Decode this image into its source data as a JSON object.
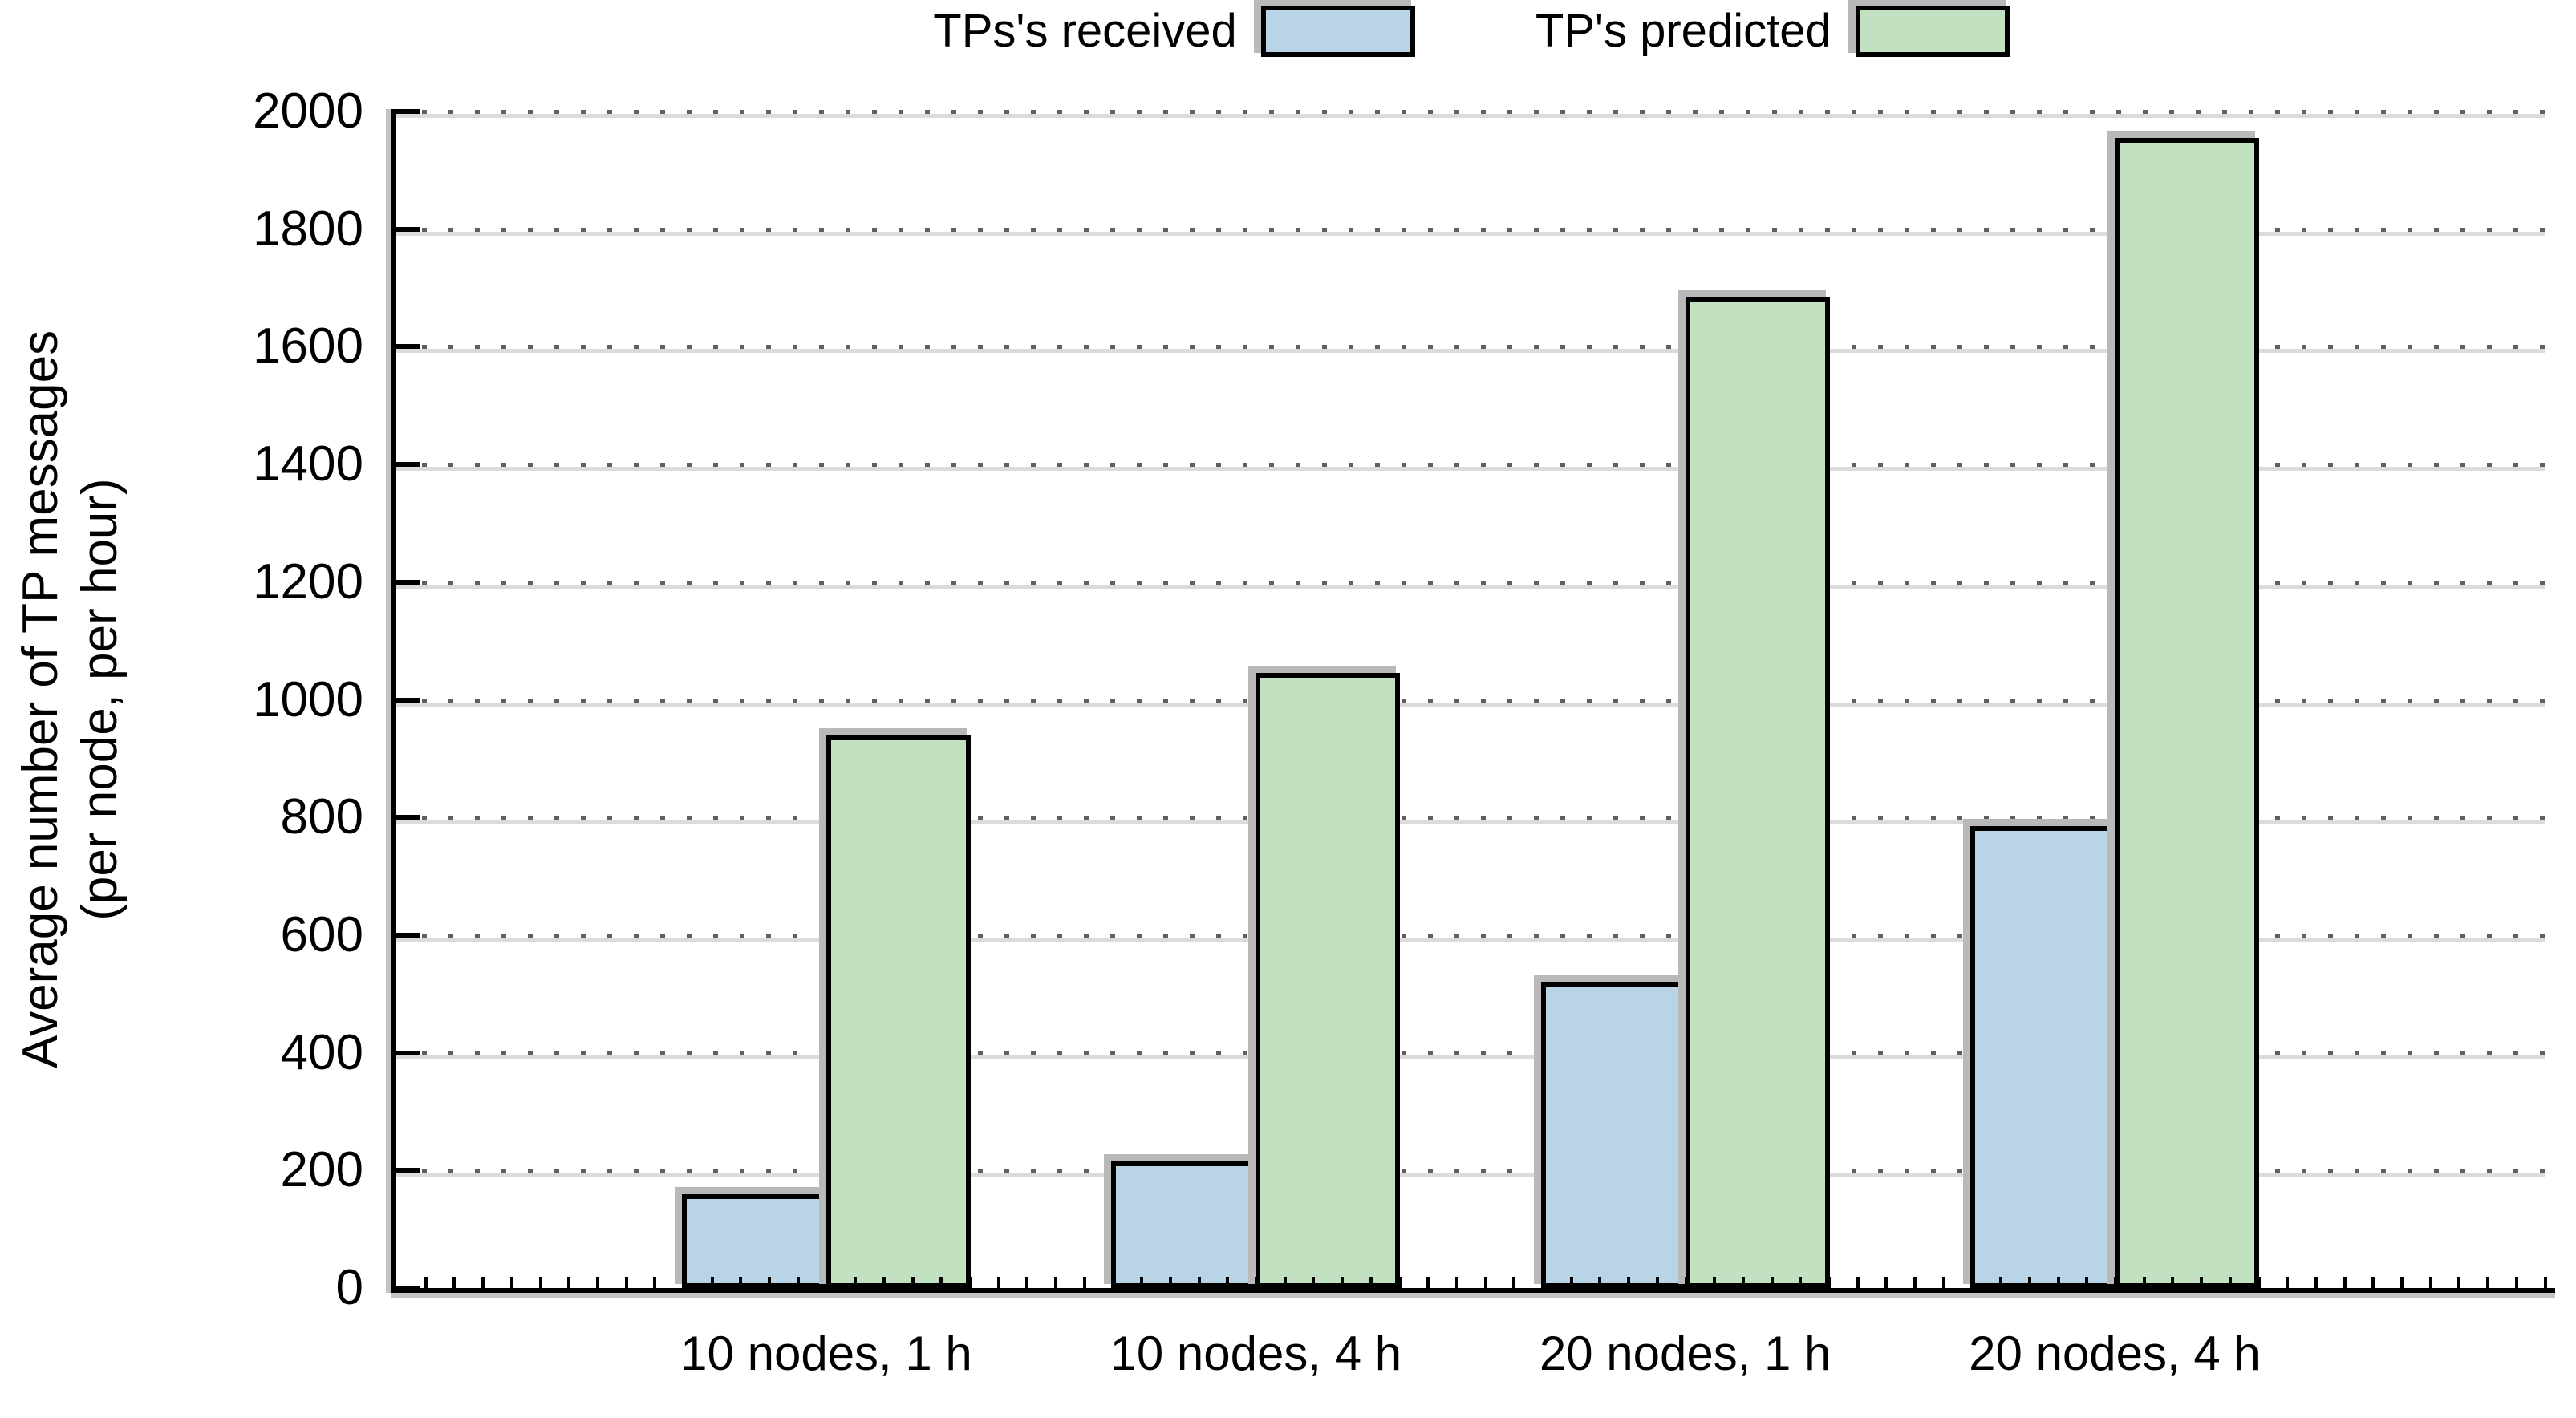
{
  "figure": {
    "ylabel_line1": "Average number of TP messages",
    "ylabel_line2": "(per node, per hour)"
  },
  "chart_data": {
    "type": "bar",
    "title": "",
    "xlabel": "",
    "ylabel": "Average number of TP messages (per node, per hour)",
    "categories": [
      "10 nodes, 1 h",
      "10 nodes, 4 h",
      "20 nodes, 1 h",
      "20 nodes, 4 h"
    ],
    "series": [
      {
        "name": "TPs's received",
        "color": "#b9d3e7",
        "values": [
          160,
          215,
          520,
          785
        ]
      },
      {
        "name": "TP's predicted",
        "color": "#c1e1c0",
        "values": [
          940,
          1045,
          1685,
          1955
        ]
      }
    ],
    "ylim": [
      0,
      2000
    ],
    "ytick_step": 200,
    "grid": "horizontal-dotted",
    "legend_position": "top-center",
    "bar_border_color": "#000000",
    "shadow_color": "#b9b9b9",
    "text_color": "#000000"
  }
}
